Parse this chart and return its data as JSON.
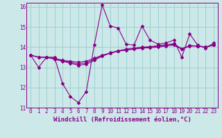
{
  "xlabel": "Windchill (Refroidissement éolien,°C)",
  "bg_color": "#cce8e8",
  "grid_color": "#99cccc",
  "line_color": "#880088",
  "xlim": [
    -0.5,
    23.5
  ],
  "ylim": [
    11,
    16.2
  ],
  "yticks": [
    11,
    12,
    13,
    14,
    15,
    16
  ],
  "xticks": [
    0,
    1,
    2,
    3,
    4,
    5,
    6,
    7,
    8,
    9,
    10,
    11,
    12,
    13,
    14,
    15,
    16,
    17,
    18,
    19,
    20,
    21,
    22,
    23
  ],
  "series1_x": [
    0,
    1,
    2,
    3,
    4,
    5,
    6,
    7,
    8,
    9,
    10,
    11,
    12,
    13,
    14,
    15,
    16,
    17,
    18,
    19,
    20,
    21,
    22,
    23
  ],
  "series1_y": [
    13.6,
    13.0,
    13.5,
    13.5,
    12.2,
    11.55,
    11.25,
    11.8,
    14.1,
    16.1,
    15.05,
    14.95,
    14.15,
    14.1,
    15.05,
    14.35,
    14.15,
    14.2,
    14.35,
    13.5,
    14.65,
    14.1,
    13.95,
    14.2
  ],
  "series2_x": [
    0,
    1,
    2,
    3,
    4,
    5,
    6,
    7,
    8,
    9,
    10,
    11,
    12,
    13,
    14,
    15,
    16,
    17,
    18,
    19,
    20,
    21,
    22,
    23
  ],
  "series2_y": [
    13.6,
    13.5,
    13.5,
    13.45,
    13.35,
    13.3,
    13.25,
    13.3,
    13.45,
    13.6,
    13.7,
    13.8,
    13.85,
    13.9,
    13.95,
    13.97,
    14.0,
    14.05,
    14.1,
    13.9,
    14.05,
    14.05,
    14.0,
    14.1
  ],
  "series3_x": [
    0,
    1,
    2,
    3,
    4,
    5,
    6,
    7,
    8,
    9,
    10,
    11,
    12,
    13,
    14,
    15,
    16,
    17,
    18,
    19,
    20,
    21,
    22,
    23
  ],
  "series3_y": [
    13.6,
    13.5,
    13.5,
    13.4,
    13.3,
    13.2,
    13.1,
    13.15,
    13.35,
    13.55,
    13.7,
    13.8,
    13.88,
    13.93,
    13.98,
    14.0,
    14.05,
    14.1,
    14.15,
    13.9,
    14.08,
    14.05,
    14.0,
    14.1
  ],
  "series4_x": [
    0,
    1,
    2,
    3,
    4,
    5,
    6,
    7,
    8,
    9,
    10,
    11,
    12,
    13,
    14,
    15,
    16,
    17,
    18,
    19,
    20,
    21,
    22,
    23
  ],
  "series4_y": [
    13.6,
    13.5,
    13.5,
    13.42,
    13.32,
    13.25,
    13.17,
    13.22,
    13.4,
    13.57,
    13.72,
    13.82,
    13.9,
    13.95,
    14.0,
    14.02,
    14.07,
    14.12,
    14.17,
    13.92,
    14.07,
    14.05,
    14.02,
    14.1
  ],
  "marker": "D",
  "markersize": 2.0,
  "linewidth": 0.8,
  "tick_fontsize": 5.5,
  "label_fontsize": 6.5
}
